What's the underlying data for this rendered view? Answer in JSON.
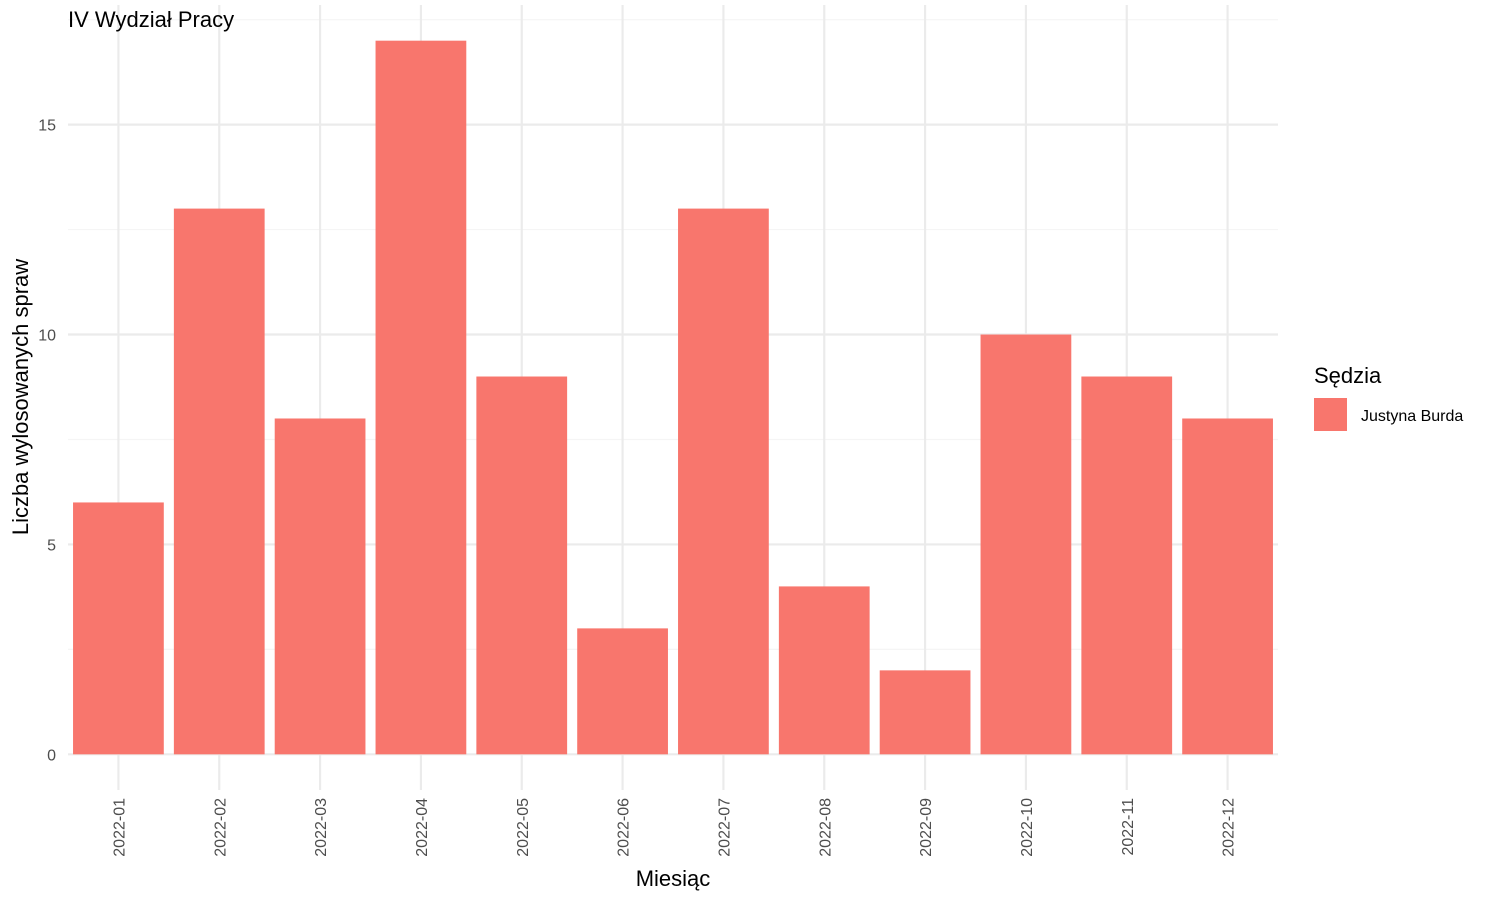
{
  "chart_data": {
    "type": "bar",
    "title": "IV Wydział Pracy",
    "xlabel": "Miesiąc",
    "ylabel": "Liczba wylosowanych spraw",
    "categories": [
      "2022-01",
      "2022-02",
      "2022-03",
      "2022-04",
      "2022-05",
      "2022-06",
      "2022-07",
      "2022-08",
      "2022-09",
      "2022-10",
      "2022-11",
      "2022-12"
    ],
    "series": [
      {
        "name": "Justyna Burda",
        "values": [
          6,
          13,
          8,
          17,
          9,
          3,
          13,
          4,
          2,
          10,
          9,
          8
        ],
        "color": "#F8766D"
      }
    ],
    "yticks": [
      0,
      5,
      10,
      15
    ],
    "ylim": [
      -0.85,
      17.85
    ],
    "grid": true,
    "legend": {
      "title": "Sędzia",
      "placement": "right"
    },
    "colors": {
      "grid_major": "#ebebeb",
      "grid_minor": "#f5f5f5",
      "tick_text": "#4d4d4d",
      "text": "#000000"
    }
  }
}
